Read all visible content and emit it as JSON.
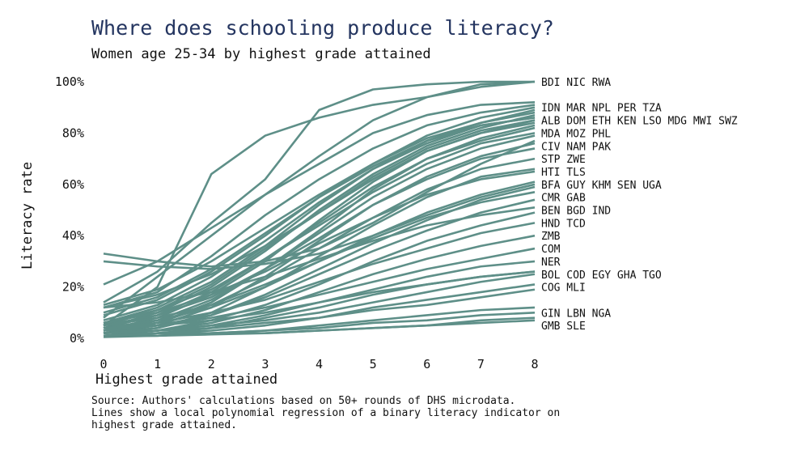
{
  "chart_data": {
    "type": "line",
    "title": "Where does schooling produce literacy?",
    "subtitle": "Women age 25-34 by highest grade attained",
    "xlabel": "Highest grade attained",
    "ylabel": "Literacy rate",
    "x": [
      0,
      1,
      2,
      3,
      4,
      5,
      6,
      7,
      8
    ],
    "xlim": [
      0,
      8
    ],
    "ylim": [
      0,
      100
    ],
    "y_ticks": [
      "0%",
      "20%",
      "40%",
      "60%",
      "80%",
      "100%"
    ],
    "x_ticks": [
      "0",
      "1",
      "2",
      "3",
      "4",
      "5",
      "6",
      "7",
      "8"
    ],
    "grid": false,
    "line_color": "#5e8f88",
    "end_labels": [
      {
        "text": "BDI NIC RWA",
        "y": 100
      },
      {
        "text": "IDN MAR NPL PER TZA",
        "y": 90
      },
      {
        "text": "ALB DOM ETH KEN LSO MDG MWI SWZ",
        "y": 85
      },
      {
        "text": "MDA MOZ PHL",
        "y": 80
      },
      {
        "text": "CIV NAM PAK",
        "y": 75
      },
      {
        "text": "STP ZWE",
        "y": 70
      },
      {
        "text": "HTI TLS",
        "y": 65
      },
      {
        "text": "BFA GUY KHM SEN UGA",
        "y": 60
      },
      {
        "text": "CMR GAB",
        "y": 55
      },
      {
        "text": "BEN BGD IND",
        "y": 50
      },
      {
        "text": "HND TCD",
        "y": 45
      },
      {
        "text": "ZMB",
        "y": 40
      },
      {
        "text": "COM",
        "y": 35
      },
      {
        "text": "NER",
        "y": 30
      },
      {
        "text": "BOL COD EGY GHA TGO",
        "y": 25
      },
      {
        "text": "COG MLI",
        "y": 20
      },
      {
        "text": "GIN LBN NGA",
        "y": 10
      },
      {
        "text": "GMB SLE",
        "y": 5
      }
    ],
    "series": [
      {
        "values": [
          5,
          20,
          64,
          79,
          86,
          91,
          94,
          99,
          100
        ]
      },
      {
        "values": [
          14,
          26,
          45,
          62,
          89,
          97,
          99,
          100,
          100
        ]
      },
      {
        "values": [
          8,
          24,
          40,
          56,
          71,
          85,
          94,
          98,
          100
        ]
      },
      {
        "values": [
          21,
          30,
          43,
          56,
          68,
          80,
          87,
          91,
          92
        ]
      },
      {
        "values": [
          12,
          18,
          32,
          48,
          62,
          74,
          83,
          88,
          91
        ]
      },
      {
        "values": [
          9,
          15,
          26,
          40,
          55,
          68,
          79,
          86,
          90
        ]
      },
      {
        "values": [
          6,
          12,
          22,
          36,
          52,
          66,
          77,
          84,
          89
        ]
      },
      {
        "values": [
          13,
          19,
          30,
          43,
          56,
          68,
          78,
          84,
          88
        ]
      },
      {
        "values": [
          4,
          10,
          20,
          34,
          50,
          64,
          75,
          82,
          87
        ]
      },
      {
        "values": [
          7,
          13,
          24,
          38,
          53,
          66,
          76,
          83,
          86
        ]
      },
      {
        "values": [
          10,
          16,
          27,
          41,
          55,
          67,
          77,
          83,
          86
        ]
      },
      {
        "values": [
          3,
          8,
          17,
          30,
          46,
          61,
          73,
          80,
          85
        ]
      },
      {
        "values": [
          5,
          11,
          21,
          35,
          49,
          63,
          74,
          81,
          85
        ]
      },
      {
        "values": [
          12,
          17,
          25,
          36,
          49,
          62,
          73,
          80,
          84
        ]
      },
      {
        "values": [
          2,
          6,
          14,
          27,
          42,
          58,
          70,
          78,
          83
        ]
      },
      {
        "values": [
          4,
          9,
          18,
          31,
          45,
          59,
          70,
          77,
          82
        ]
      },
      {
        "values": [
          6,
          11,
          19,
          31,
          44,
          57,
          68,
          76,
          80
        ]
      },
      {
        "values": [
          3,
          7,
          15,
          27,
          41,
          55,
          66,
          74,
          79
        ]
      },
      {
        "values": [
          33,
          30,
          28,
          30,
          35,
          45,
          57,
          68,
          77
        ]
      },
      {
        "values": [
          2,
          5,
          12,
          24,
          38,
          52,
          63,
          71,
          76
        ]
      },
      {
        "values": [
          5,
          9,
          16,
          27,
          39,
          52,
          62,
          70,
          74
        ]
      },
      {
        "values": [
          3,
          6,
          13,
          23,
          35,
          47,
          58,
          66,
          70
        ]
      },
      {
        "values": [
          2,
          4,
          10,
          20,
          32,
          44,
          55,
          63,
          66
        ]
      },
      {
        "values": [
          6,
          10,
          17,
          26,
          37,
          47,
          56,
          62,
          65
        ]
      },
      {
        "values": [
          4,
          7,
          12,
          20,
          30,
          40,
          49,
          56,
          61
        ]
      },
      {
        "values": [
          30,
          28,
          27,
          29,
          33,
          40,
          48,
          55,
          60
        ]
      },
      {
        "values": [
          2,
          4,
          9,
          17,
          27,
          37,
          46,
          54,
          59
        ]
      },
      {
        "values": [
          5,
          8,
          13,
          21,
          30,
          39,
          47,
          53,
          57
        ]
      },
      {
        "values": [
          3,
          5,
          9,
          16,
          25,
          34,
          42,
          49,
          54
        ]
      },
      {
        "values": [
          12,
          14,
          18,
          24,
          31,
          38,
          44,
          48,
          51
        ]
      },
      {
        "values": [
          2,
          3,
          7,
          13,
          21,
          30,
          38,
          44,
          49
        ]
      },
      {
        "values": [
          4,
          6,
          10,
          15,
          22,
          29,
          35,
          41,
          45
        ]
      },
      {
        "values": [
          1,
          3,
          6,
          11,
          18,
          25,
          31,
          36,
          40
        ]
      },
      {
        "values": [
          3,
          5,
          8,
          12,
          17,
          22,
          27,
          31,
          35
        ]
      },
      {
        "values": [
          2,
          3,
          5,
          9,
          14,
          19,
          24,
          28,
          30
        ]
      },
      {
        "values": [
          1,
          2,
          4,
          8,
          12,
          17,
          21,
          24,
          26
        ]
      },
      {
        "values": [
          4,
          5,
          7,
          10,
          14,
          18,
          21,
          24,
          26
        ]
      },
      {
        "values": [
          2,
          3,
          5,
          7,
          10,
          14,
          18,
          22,
          25
        ]
      },
      {
        "values": [
          1,
          2,
          3,
          5,
          8,
          12,
          15,
          18,
          21
        ]
      },
      {
        "values": [
          2,
          3,
          4,
          6,
          8,
          11,
          13,
          16,
          19
        ]
      },
      {
        "values": [
          1,
          1,
          2,
          3,
          5,
          7,
          9,
          11,
          12
        ]
      },
      {
        "values": [
          1,
          2,
          2,
          3,
          4,
          6,
          7,
          9,
          10
        ]
      },
      {
        "values": [
          0.5,
          1,
          1.5,
          2,
          3,
          4,
          5,
          7,
          8
        ]
      },
      {
        "values": [
          1,
          1,
          2,
          2,
          3,
          4,
          5,
          6,
          7
        ]
      }
    ],
    "source_lines": [
      "Source: Authors' calculations based on 50+ rounds of DHS microdata.",
      "Lines show a local polynomial regression of a binary literacy indicator on",
      "highest grade attained."
    ]
  }
}
